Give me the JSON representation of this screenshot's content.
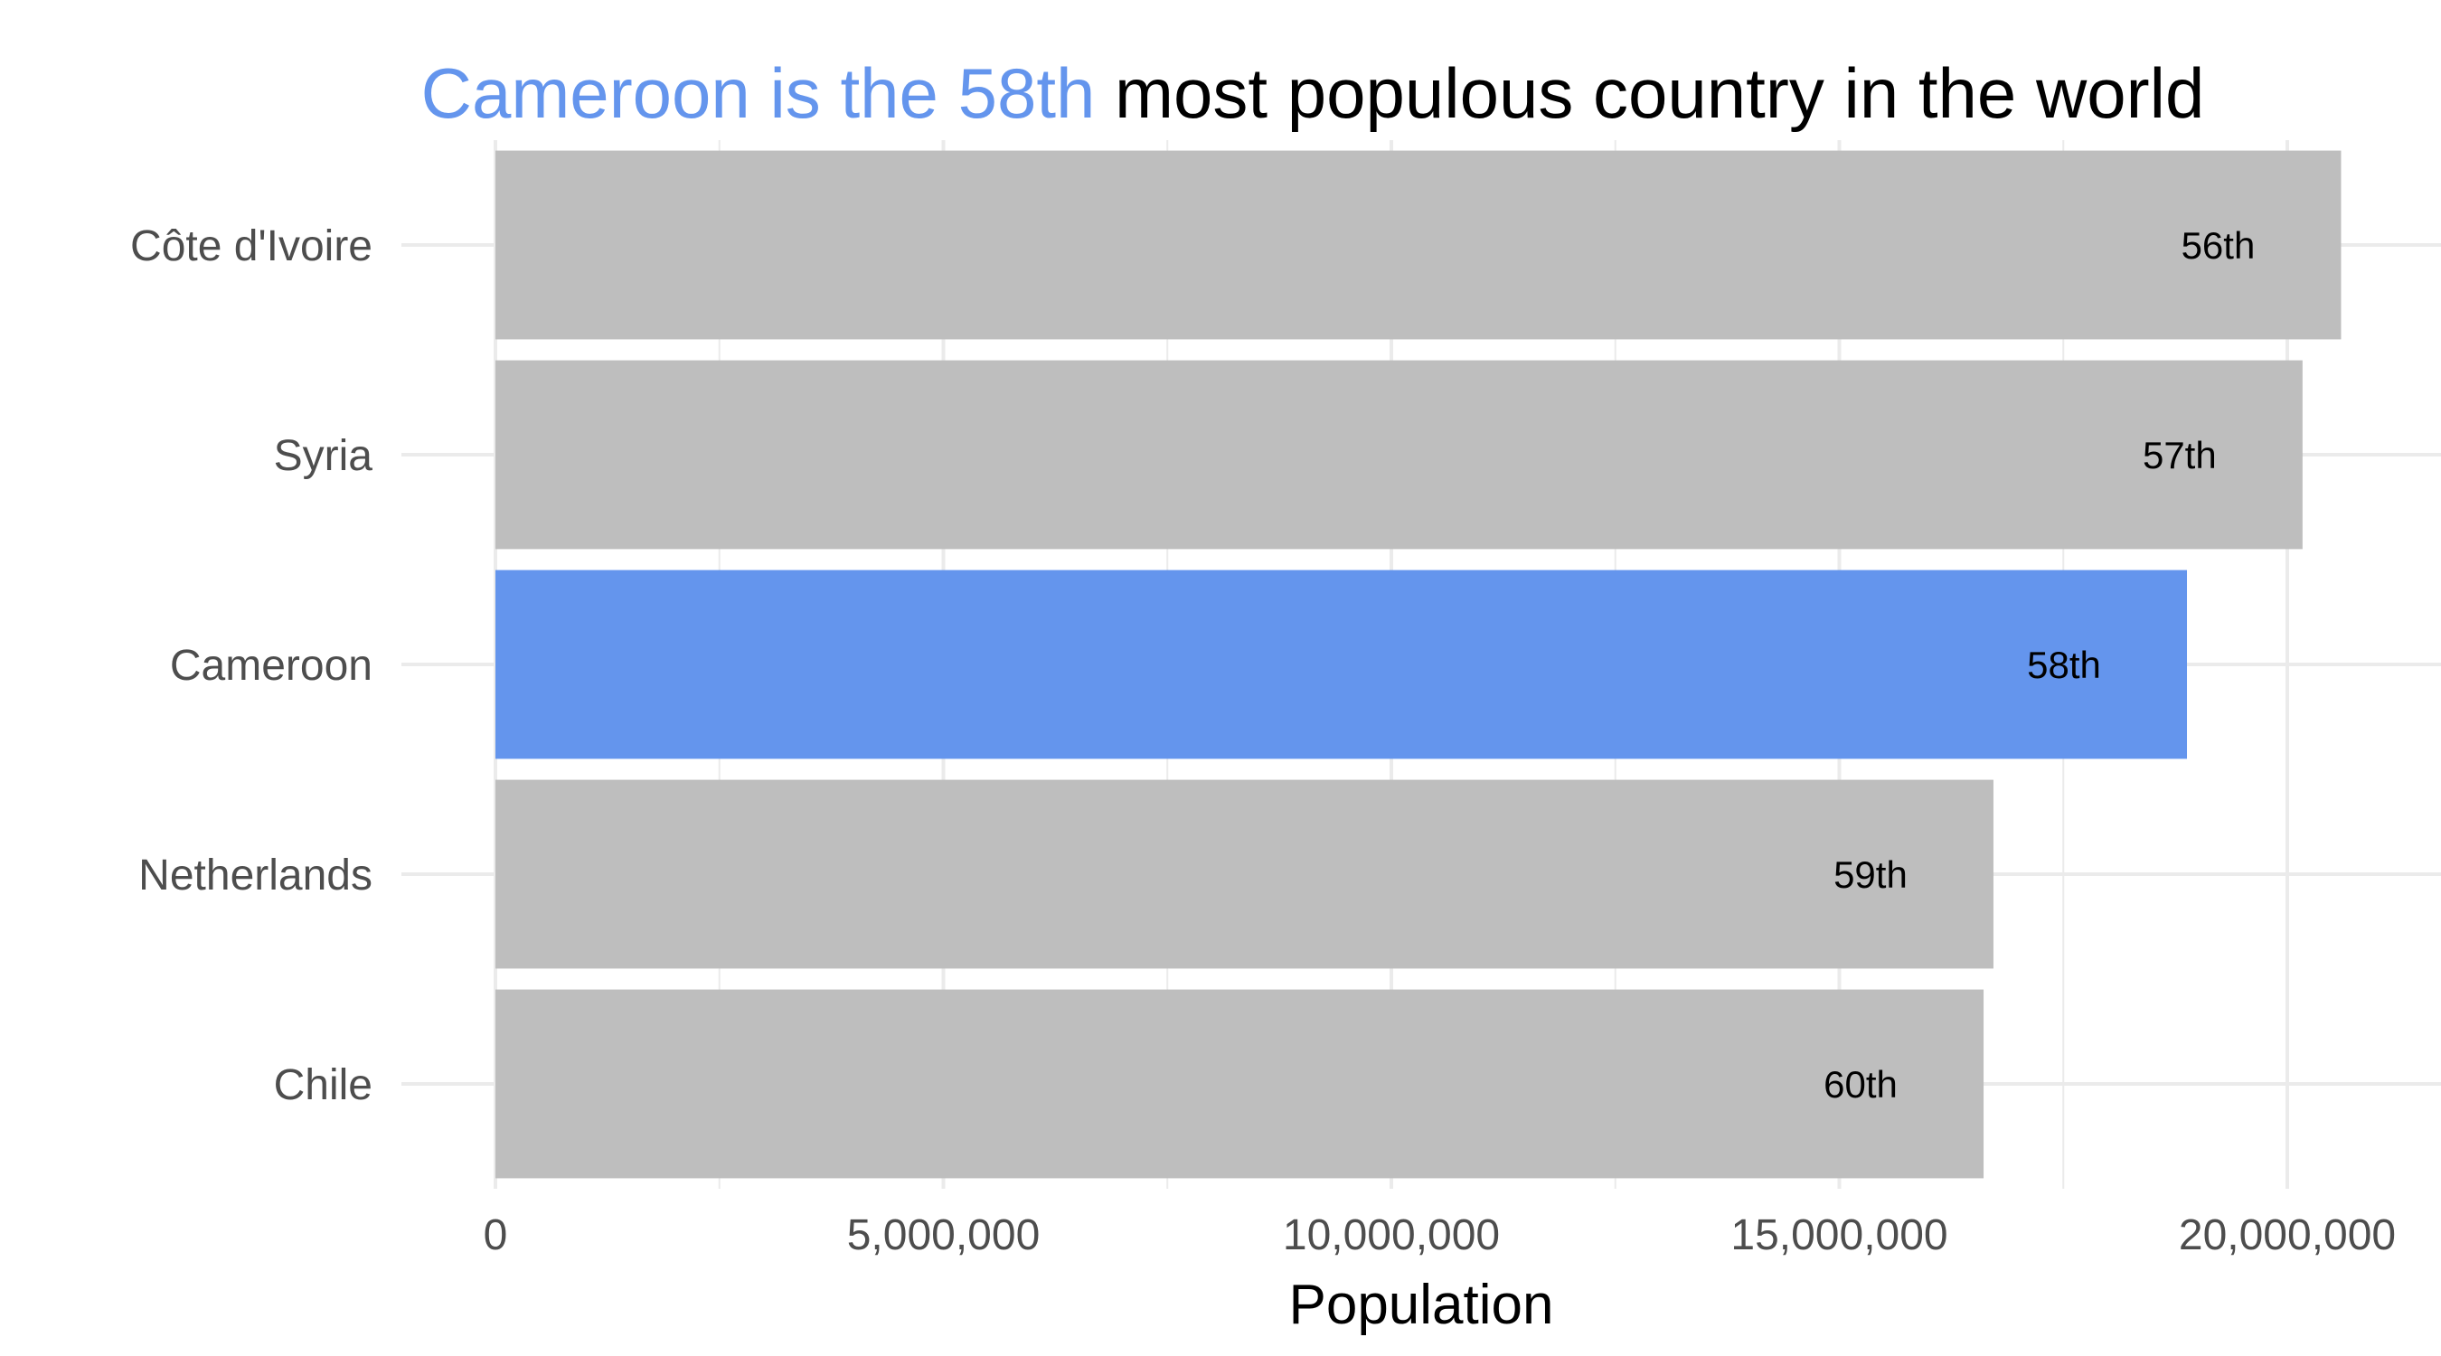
{
  "chart_data": {
    "type": "bar",
    "orientation": "horizontal",
    "title_highlight": "Cameroon is the 58th",
    "title_rest": " most populous country in the world",
    "xlabel": "Population",
    "ylabel": "",
    "xlim": [
      0,
      21500000
    ],
    "x_ticks": [
      0,
      5000000,
      10000000,
      15000000,
      20000000
    ],
    "x_tick_labels": [
      "0",
      "5,000,000",
      "10,000,000",
      "15,000,000",
      "20,000,000"
    ],
    "grid": true,
    "legend": "none",
    "categories": [
      "Côte d'Ivoire",
      "Syria",
      "Cameroon",
      "Netherlands",
      "Chile"
    ],
    "values": [
      20600000,
      20170000,
      18880000,
      16720000,
      16610000
    ],
    "labels": [
      "56th",
      "57th",
      "58th",
      "59th",
      "60th"
    ],
    "highlight_category": "Cameroon",
    "colors": {
      "highlight": "#6495ED",
      "default": "#BEBEBE",
      "grid": "#EBEBEB"
    }
  }
}
